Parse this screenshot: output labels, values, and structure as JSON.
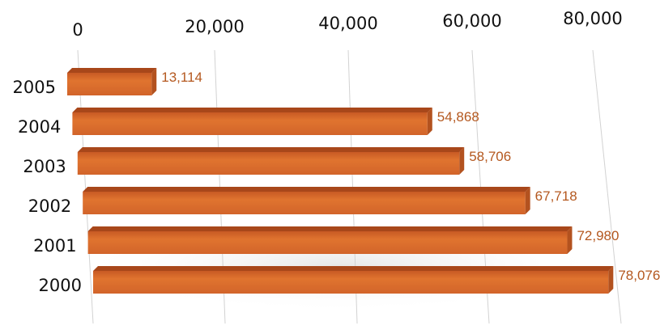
{
  "chart_data": {
    "type": "bar",
    "orientation": "horizontal",
    "categories": [
      "2005",
      "2004",
      "2003",
      "2002",
      "2001",
      "2000"
    ],
    "values": [
      13114,
      54868,
      58706,
      67718,
      72980,
      78076
    ],
    "data_labels": [
      "13,114",
      "54,868",
      "58,706",
      "67,718",
      "72,980",
      "78,076"
    ],
    "x_ticks": [
      0,
      20000,
      40000,
      60000,
      80000
    ],
    "x_tick_labels": [
      "0",
      "20,000",
      "40,000",
      "60,000",
      "80,000"
    ],
    "xlim": [
      0,
      80000
    ],
    "grid": true,
    "axis_position": "top",
    "style": "3d",
    "colors": {
      "bar_front": "#d9692c",
      "bar_top": "#a8471a",
      "bar_end": "#b3521f",
      "data_label": "#b4581f",
      "grid": "#d2d2d2"
    }
  }
}
